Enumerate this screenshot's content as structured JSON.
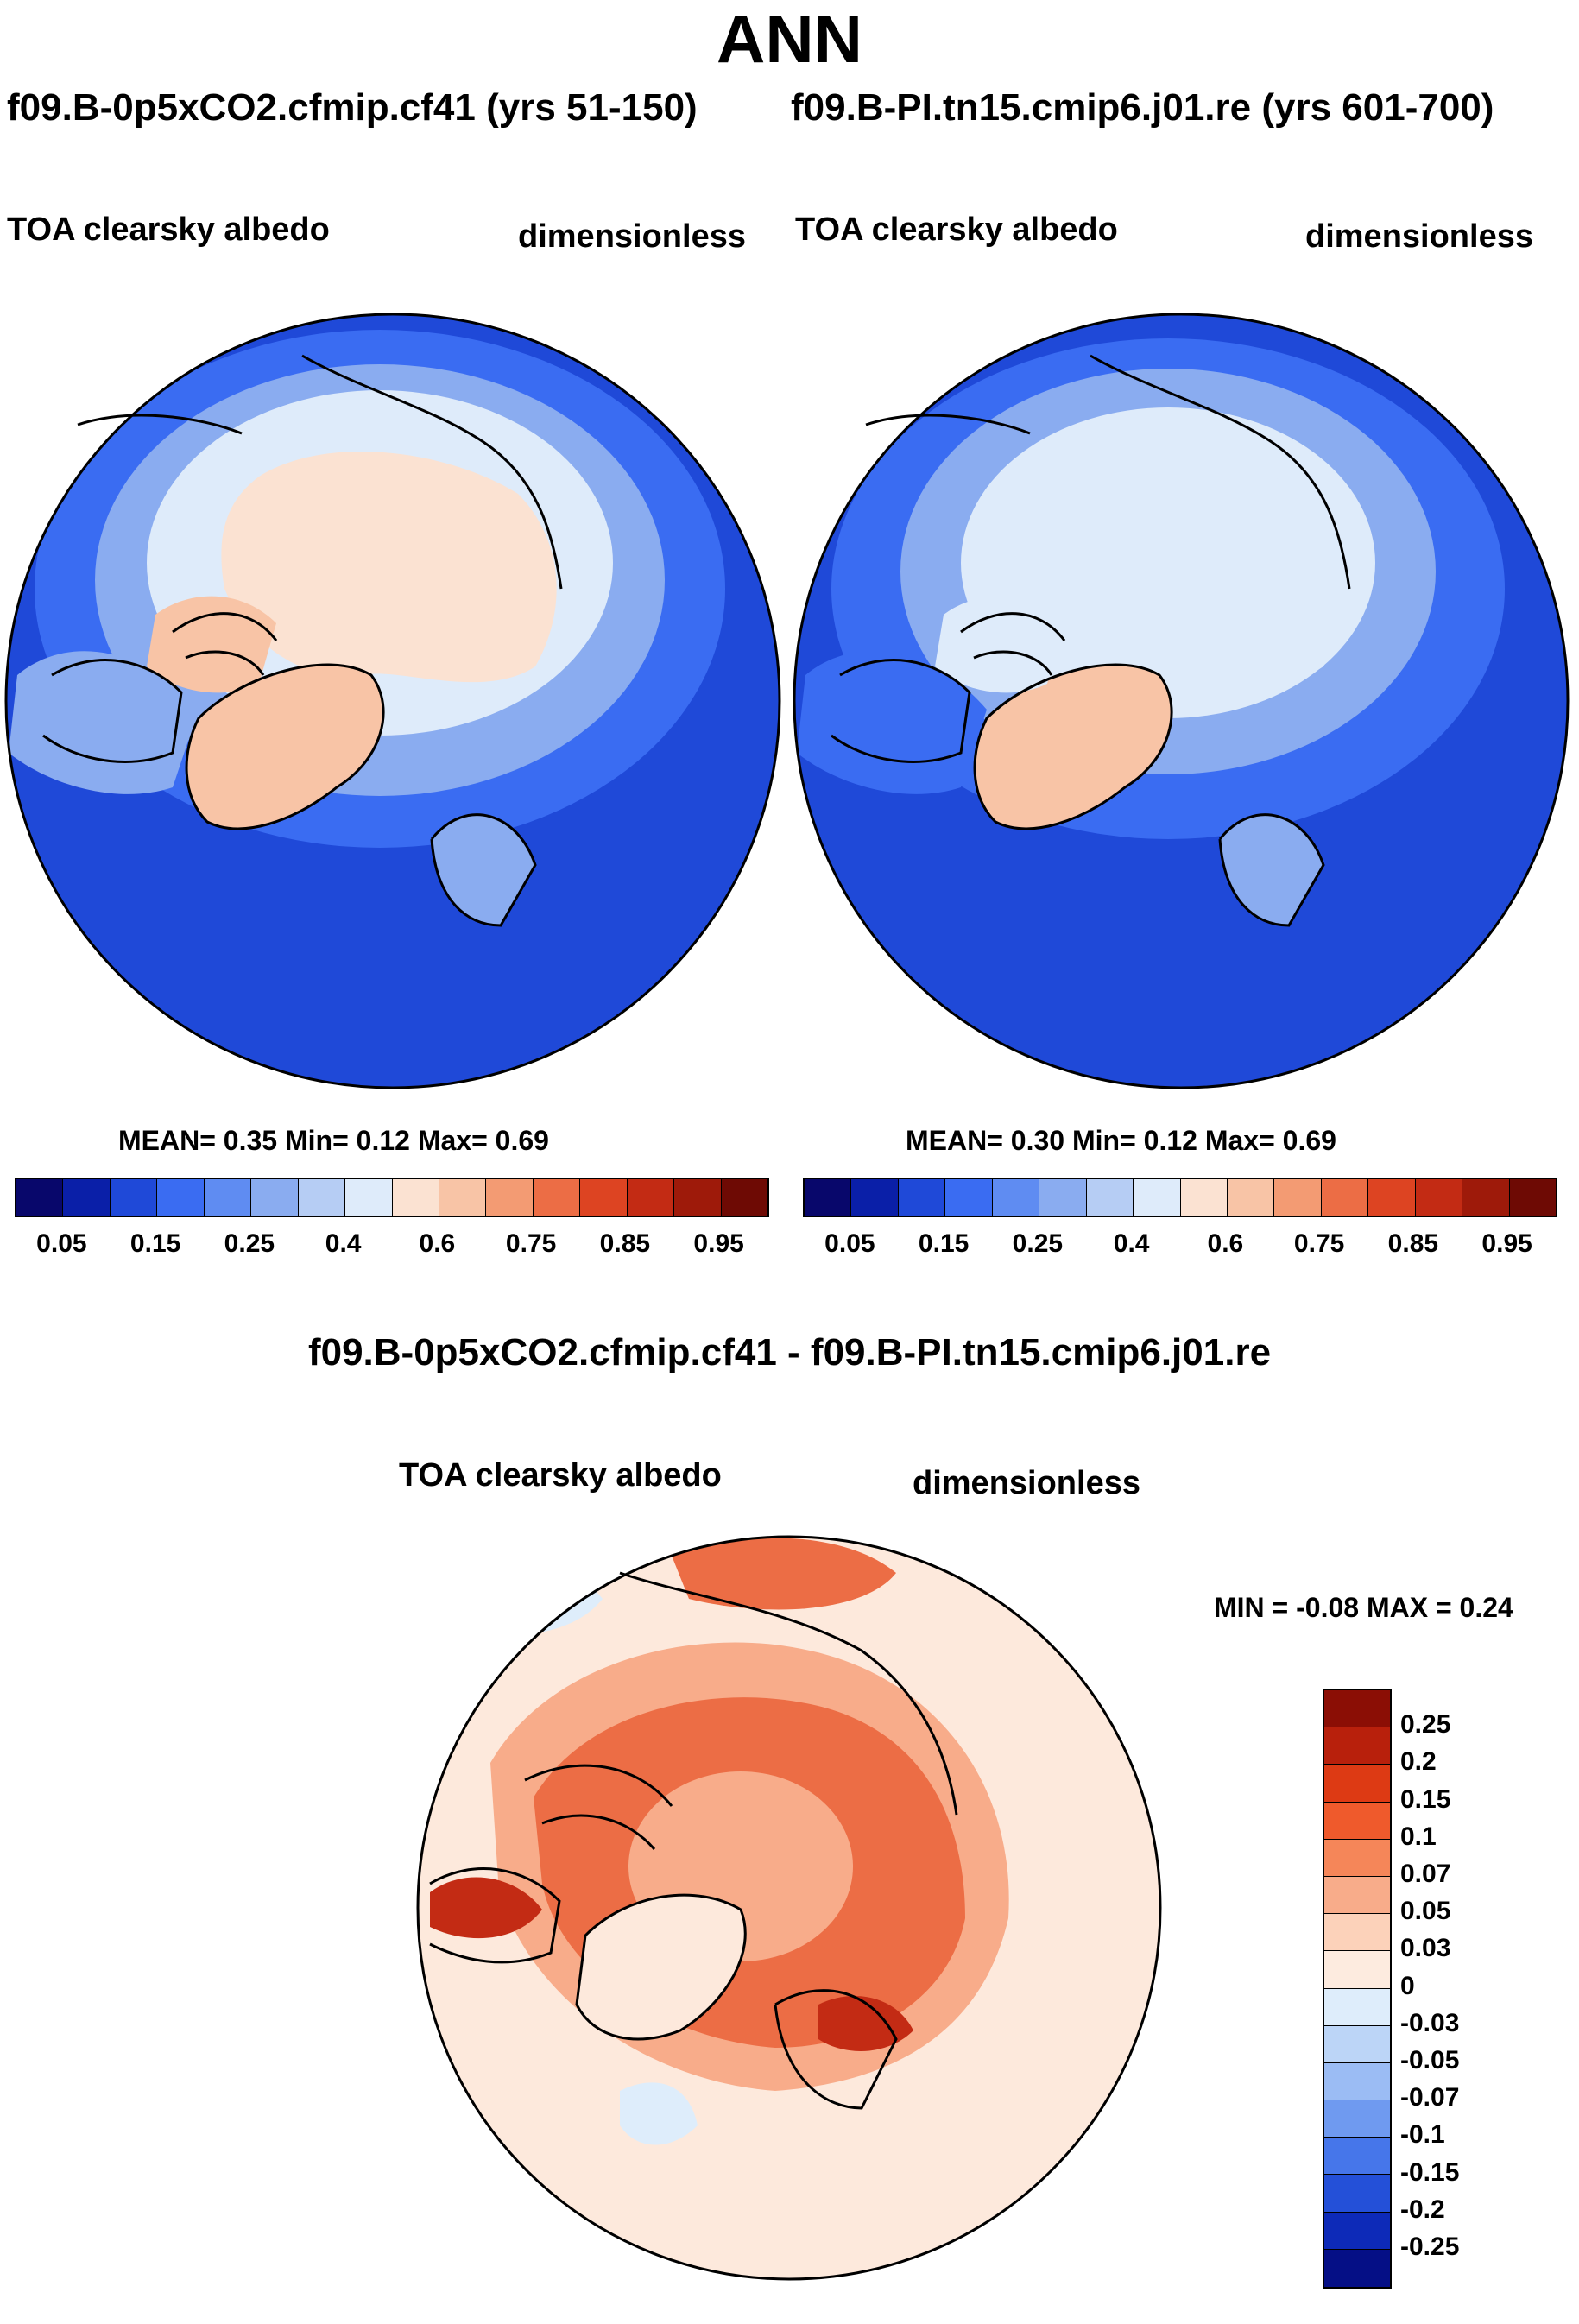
{
  "title": "ANN",
  "pair_titles": {
    "left": "f09.B-0p5xCO2.cfmip.cf41 (yrs 51-150)",
    "right": "f09.B-PI.tn15.cmip6.j01.re (yrs 601-700)"
  },
  "maps": [
    {
      "variable": "TOA clearsky albedo",
      "units": "dimensionless",
      "stats_text": "MEAN=   0.35  Min=   0.12  Max=   0.69",
      "mean": 0.35,
      "min": 0.12,
      "max": 0.69
    },
    {
      "variable": "TOA clearsky albedo",
      "units": "dimensionless",
      "stats_text": "MEAN=   0.30  Min=   0.12  Max=   0.69",
      "mean": 0.3,
      "min": 0.12,
      "max": 0.69
    }
  ],
  "colorbar": {
    "colors": [
      "#08076b",
      "#0a1fa8",
      "#1f49d8",
      "#3a6cf2",
      "#5f8cf2",
      "#8aacf0",
      "#b6cdf4",
      "#deebfa",
      "#fbe2d2",
      "#f8c4a6",
      "#f39b73",
      "#ec6d45",
      "#dd4422",
      "#c32b14",
      "#9e1a0a",
      "#6e0a04"
    ],
    "tick_labels": [
      "0.05",
      "0.15",
      "0.25",
      "0.4",
      "0.6",
      "0.75",
      "0.85",
      "0.95"
    ]
  },
  "diff": {
    "title": "f09.B-0p5xCO2.cfmip.cf41 - f09.B-PI.tn15.cmip6.j01.re",
    "variable": "TOA clearsky albedo",
    "units": "dimensionless",
    "minmax_text": "MIN =  -0.08 MAX =   0.24",
    "min": -0.08,
    "max": 0.24,
    "colorbar": {
      "colors": [
        "#8b0e05",
        "#b8200c",
        "#dd3a14",
        "#ef5a2c",
        "#f58659",
        "#f8ac8a",
        "#fcd2ba",
        "#fdebdf",
        "#deedfb",
        "#bcd5f7",
        "#9bbcf4",
        "#6f9af0",
        "#4676ea",
        "#2450d8",
        "#0d2ab8",
        "#050f86"
      ],
      "labels": [
        "0.25",
        "0.2",
        "0.15",
        "0.1",
        "0.07",
        "0.05",
        "0.03",
        "0",
        "-0.03",
        "-0.05",
        "-0.07",
        "-0.1",
        "-0.15",
        "-0.2",
        "-0.25"
      ]
    }
  },
  "palette": {
    "ocean_deep": "#1f49d8",
    "ocean_mid": "#3a6cf2",
    "ice_edge": "#8aacf0",
    "ice_light": "#deebfa",
    "snow": "#fbe2d2",
    "greenland": "#f8c4a6",
    "diff_bg": "#fde9dc",
    "diff_mid": "#f8ac8a",
    "diff_high": "#ec6d45",
    "diff_peak": "#c32b14",
    "diff_neg": "#deedfb"
  }
}
